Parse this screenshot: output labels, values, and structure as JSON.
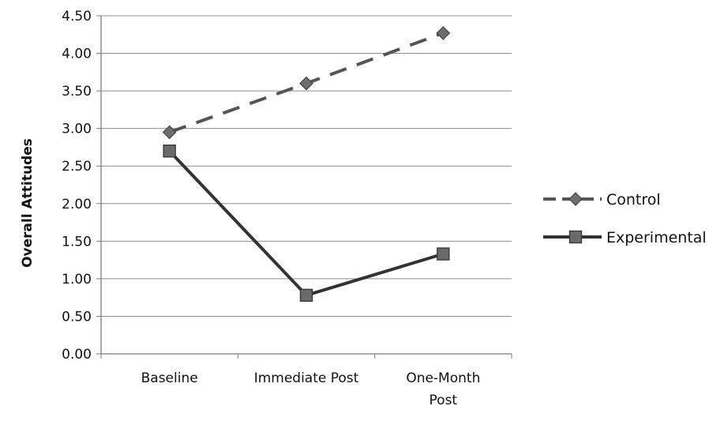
{
  "chart_data": {
    "type": "line",
    "categories": [
      [
        "Baseline"
      ],
      [
        "Immediate Post"
      ],
      [
        "One-Month",
        "Post"
      ]
    ],
    "ylabel": "Overall  Attitudes",
    "xlabel": "",
    "ylim": [
      0,
      4.5
    ],
    "ytick_step": 0.5,
    "y_tick_labels": [
      "0.00",
      "0.50",
      "1.00",
      "1.50",
      "2.00",
      "2.50",
      "3.00",
      "3.50",
      "4.00",
      "4.50"
    ],
    "grid": "horizontal",
    "legend_position": "right",
    "series": [
      {
        "name": "Control",
        "values": [
          2.95,
          3.6,
          4.27
        ],
        "line_style": "dashed",
        "marker": "diamond",
        "color": "#555555"
      },
      {
        "name": "Experimental",
        "values": [
          2.7,
          0.78,
          1.33
        ],
        "line_style": "solid",
        "marker": "square",
        "color": "#333333"
      }
    ]
  }
}
